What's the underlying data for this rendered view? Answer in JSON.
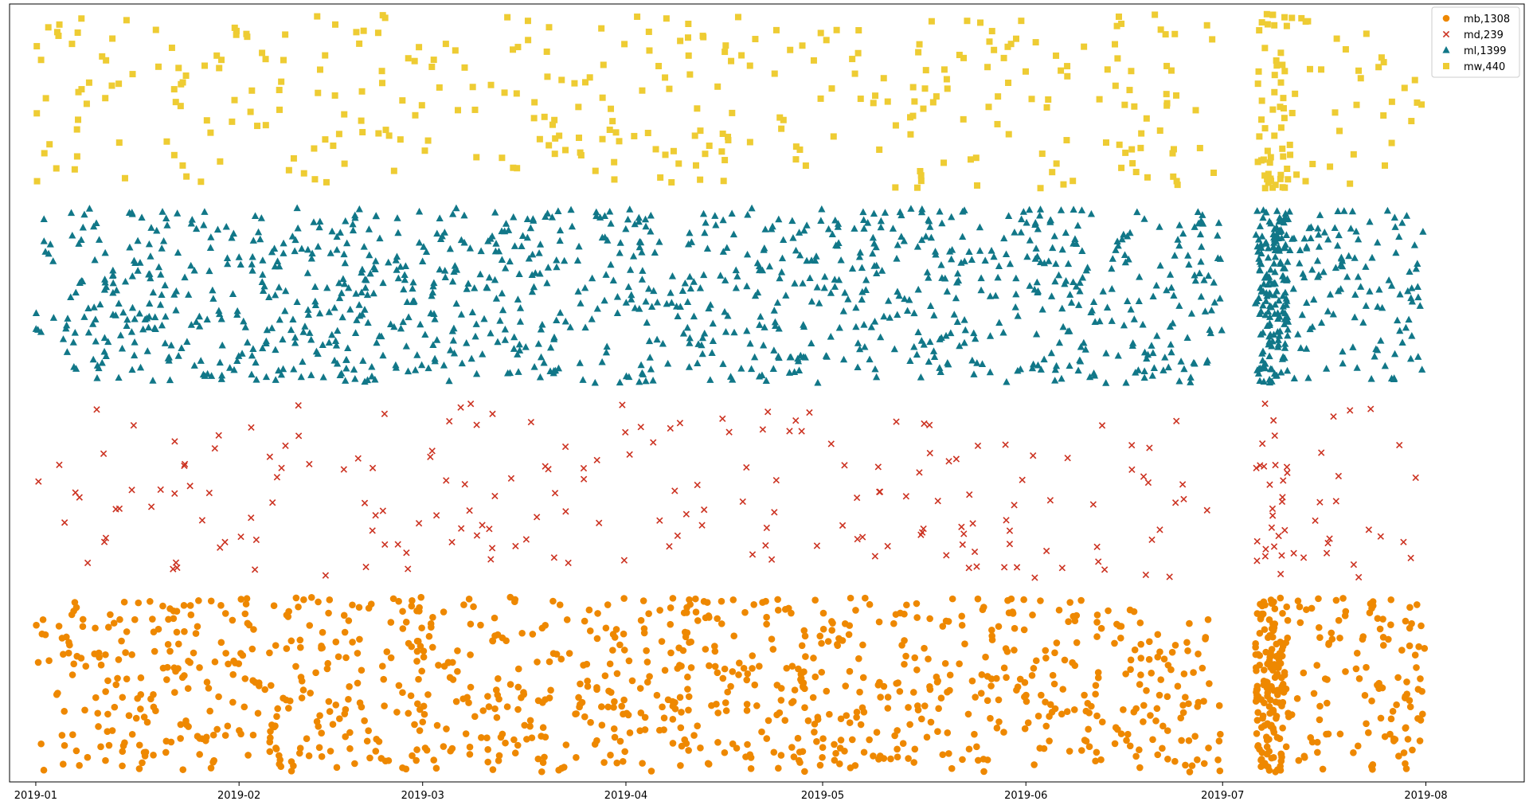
{
  "chart_data": {
    "type": "scatter",
    "title": "",
    "xlabel": "",
    "ylabel": "",
    "x_axis": {
      "kind": "date",
      "range": [
        "2018-12-28",
        "2019-08-16"
      ],
      "tick_labels": [
        "2019-01",
        "2019-02",
        "2019-03",
        "2019-04",
        "2019-05",
        "2019-06",
        "2019-07",
        "2019-08"
      ],
      "tick_dates": [
        "2019-01-01",
        "2019-02-01",
        "2019-03-01",
        "2019-04-01",
        "2019-05-01",
        "2019-06-01",
        "2019-07-01",
        "2019-08-01"
      ]
    },
    "y_axis": {
      "visible": false,
      "range": [
        0,
        4
      ]
    },
    "grid": false,
    "legend": {
      "position": "upper-right"
    },
    "gap": [
      "2019-07-01",
      "2019-07-06"
    ],
    "series": [
      {
        "name": "mb,1308",
        "marker": "circle",
        "color": "#ee8800",
        "count": 1308,
        "band": [
          0.05,
          0.95
        ]
      },
      {
        "name": "md,239",
        "marker": "x",
        "color": "#cc3322",
        "count": 239,
        "band": [
          1.05,
          1.95
        ]
      },
      {
        "name": "ml,1399",
        "marker": "triangle",
        "color": "#117788",
        "count": 1399,
        "band": [
          2.05,
          2.95
        ]
      },
      {
        "name": "mw,440",
        "marker": "square",
        "color": "#eecc33",
        "count": 440,
        "band": [
          3.05,
          3.95
        ]
      }
    ]
  }
}
